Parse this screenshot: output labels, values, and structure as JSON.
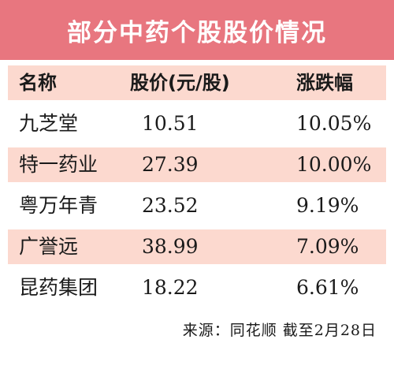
{
  "title": "部分中药个股股价情况",
  "columns": [
    "名称",
    "股价(元/股)",
    "涨跌幅"
  ],
  "rows": [
    {
      "name": "九芝堂",
      "price": "10.51",
      "change": "10.05%"
    },
    {
      "name": "特一药业",
      "price": "27.39",
      "change": "10.00%"
    },
    {
      "name": "粤万年青",
      "price": "23.52",
      "change": "9.19%"
    },
    {
      "name": "广誉远",
      "price": "38.99",
      "change": "7.09%"
    },
    {
      "name": "昆药集团",
      "price": "18.22",
      "change": "6.61%"
    }
  ],
  "source": "来源：同花顺  截至2月28日",
  "colors": {
    "banner": "#e8767f",
    "row_shade": "#fcd9cf"
  }
}
